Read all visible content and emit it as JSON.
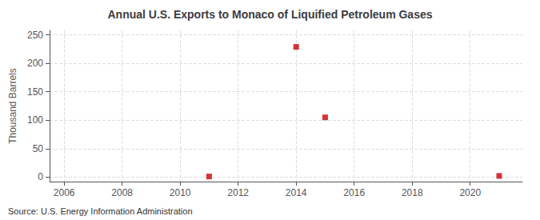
{
  "chart_data": {
    "type": "scatter",
    "title": "Annual U.S. Exports to Monaco of Liquified Petroleum Gases",
    "ylabel": "Thousand Barrels",
    "annotations": [
      "Source: U.S. Energy Information Administration"
    ],
    "x": [
      2011,
      2014,
      2015,
      2021
    ],
    "values": [
      1,
      229,
      105,
      2
    ],
    "color": "#cc0000",
    "marker": "square",
    "xlim": [
      2005.5,
      2021.8
    ],
    "xticks": [
      2006,
      2008,
      2010,
      2012,
      2014,
      2016,
      2018,
      2020
    ],
    "ylim": [
      -8,
      258
    ],
    "yticks": [
      0,
      50,
      100,
      150,
      200,
      250
    ],
    "grid": true
  }
}
